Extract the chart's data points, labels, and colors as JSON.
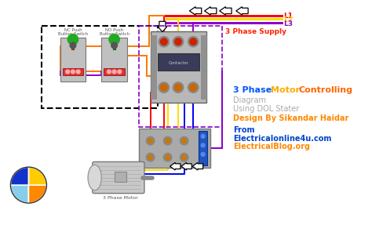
{
  "bg_color": "#ffffff",
  "title_parts": [
    {
      "text": "3 Phase ",
      "color": "#0055ff"
    },
    {
      "text": "Motor ",
      "color": "#ffaa00"
    },
    {
      "text": "Controlling",
      "color": "#ff6600"
    }
  ],
  "subtitle1": {
    "text": "Diagram",
    "color": "#aaaaaa"
  },
  "subtitle2": {
    "text": "Using DOL Stater",
    "color": "#aaaaaa"
  },
  "designer": {
    "text": "Design By Sikandar Haidar",
    "color": "#ff8800"
  },
  "from_text": {
    "text": "From",
    "color": "#0044cc"
  },
  "website1": {
    "text": "Electricalonline4u.com",
    "color": "#0044cc"
  },
  "website2": {
    "text": "ElectricalBlog.org",
    "color": "#ff8800"
  },
  "supply_text": {
    "text": "3 Phase Supply",
    "color": "#ff2200"
  },
  "L1_color": "#ff0000",
  "L2_color": "#ffcc00",
  "L3_color": "#9900cc",
  "wire_red": "#ff0000",
  "wire_yellow": "#ffdd00",
  "wire_blue": "#0000ee",
  "wire_orange": "#ff7700",
  "wire_purple": "#8800cc",
  "dashed_box_color": "#000000",
  "contactor_box_color": "#8800cc"
}
